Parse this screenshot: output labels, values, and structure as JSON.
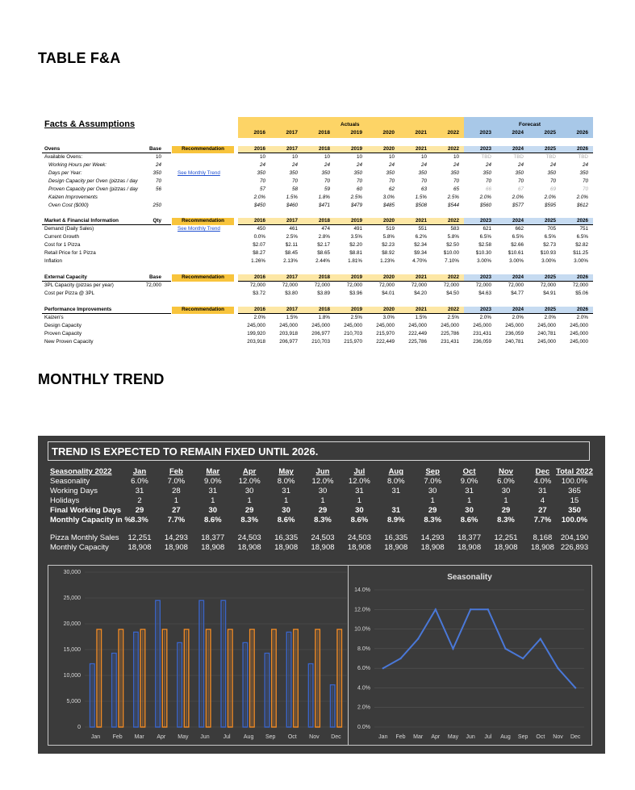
{
  "headings": {
    "table": "TABLE F&A",
    "trend": "MONTHLY TREND"
  },
  "fa": {
    "title": "Facts & Assumptions",
    "actuals_label": "Actuals",
    "forecast_label": "Forecast",
    "years": [
      "2016",
      "2017",
      "2018",
      "2019",
      "2020",
      "2021",
      "2022",
      "2023",
      "2024",
      "2025",
      "2026"
    ],
    "recommendation_label": "Recommendation",
    "sections": [
      {
        "name": "Ovens",
        "base_label": "Base",
        "rows": [
          {
            "label": "Available Ovens:",
            "indent": false,
            "base": "10",
            "link": "",
            "values": [
              "10",
              "10",
              "10",
              "10",
              "10",
              "10",
              "10",
              "TBD",
              "TBD",
              "TBD",
              "TBD"
            ]
          },
          {
            "label": "Working Hours per Week:",
            "indent": true,
            "base": "24",
            "link": "",
            "values": [
              "24",
              "24",
              "24",
              "24",
              "24",
              "24",
              "24",
              "24",
              "24",
              "24",
              "24"
            ]
          },
          {
            "label": "Days per Year:",
            "indent": true,
            "base": "350",
            "link": "See Monthly Trend",
            "values": [
              "350",
              "350",
              "350",
              "350",
              "350",
              "350",
              "350",
              "350",
              "350",
              "350",
              "350"
            ]
          },
          {
            "label": "Design Capacity per Oven (pizzas / day",
            "indent": true,
            "base": "70",
            "link": "",
            "values": [
              "70",
              "70",
              "70",
              "70",
              "70",
              "70",
              "70",
              "70",
              "70",
              "70",
              "70"
            ]
          },
          {
            "label": "Proven Capacity per Oven (pizzas / day",
            "indent": true,
            "base": "56",
            "link": "",
            "values": [
              "57",
              "58",
              "59",
              "60",
              "62",
              "63",
              "65",
              "66",
              "67",
              "69",
              "70"
            ]
          },
          {
            "label": "Kaizen Improvements",
            "indent": true,
            "base": "",
            "link": "",
            "values": [
              "2.0%",
              "1.5%",
              "1.8%",
              "2.5%",
              "3.0%",
              "1.5%",
              "2.5%",
              "2.0%",
              "2.0%",
              "2.0%",
              "2.0%"
            ]
          },
          {
            "label": "Oven Cost ($000)",
            "indent": true,
            "base": "250",
            "link": "",
            "values": [
              "$450",
              "$460",
              "$471",
              "$479",
              "$485",
              "$508",
              "$544",
              "$560",
              "$577",
              "$595",
              "$612"
            ]
          }
        ]
      },
      {
        "name": "Market & Financial Information",
        "base_label": "Qty",
        "rows": [
          {
            "label": "Demand (Daily Sales)",
            "indent": false,
            "base": "",
            "link": "See Monthly Trend",
            "values": [
              "450",
              "461",
              "474",
              "491",
              "519",
              "551",
              "583",
              "621",
              "662",
              "705",
              "751"
            ]
          },
          {
            "label": "Current Growth",
            "indent": false,
            "base": "",
            "link": "",
            "values": [
              "0.0%",
              "2.5%",
              "2.8%",
              "3.5%",
              "5.8%",
              "6.2%",
              "5.8%",
              "6.5%",
              "6.5%",
              "6.5%",
              "6.5%"
            ]
          },
          {
            "label": "Cost for 1 Pizza",
            "indent": false,
            "base": "",
            "link": "",
            "values": [
              "$2.07",
              "$2.11",
              "$2.17",
              "$2.20",
              "$2.23",
              "$2.34",
              "$2.50",
              "$2.58",
              "$2.66",
              "$2.73",
              "$2.82"
            ]
          },
          {
            "label": "Retail Price for 1 Pizza",
            "indent": false,
            "base": "",
            "link": "",
            "values": [
              "$8.27",
              "$8.45",
              "$8.65",
              "$8.81",
              "$8.92",
              "$9.34",
              "$10.00",
              "$10.30",
              "$10.61",
              "$10.93",
              "$11.25"
            ]
          },
          {
            "label": "Inflation",
            "indent": false,
            "base": "",
            "link": "",
            "values": [
              "1.26%",
              "2.13%",
              "2.44%",
              "1.81%",
              "1.23%",
              "4.70%",
              "7.10%",
              "3.00%",
              "3.00%",
              "3.00%",
              "3.00%"
            ]
          }
        ]
      },
      {
        "name": "External Capacity",
        "base_label": "Base",
        "rows": [
          {
            "label": "3PL Capacity (pizzas per year)",
            "indent": false,
            "base": "72,000",
            "link": "",
            "values": [
              "72,000",
              "72,000",
              "72,000",
              "72,000",
              "72,000",
              "72,000",
              "72,000",
              "72,000",
              "72,000",
              "72,000",
              "72,000"
            ]
          },
          {
            "label": "Cost per Pizza @ 3PL",
            "indent": false,
            "base": "",
            "link": "",
            "values": [
              "$3.72",
              "$3.80",
              "$3.89",
              "$3.96",
              "$4.01",
              "$4.20",
              "$4.50",
              "$4.63",
              "$4.77",
              "$4.91",
              "$5.06"
            ]
          }
        ]
      },
      {
        "name": "Performance Improvements",
        "base_label": "",
        "rows": [
          {
            "label": "Kaizen's",
            "indent": false,
            "base": "",
            "link": "",
            "values": [
              "2.0%",
              "1.5%",
              "1.8%",
              "2.5%",
              "3.0%",
              "1.5%",
              "2.5%",
              "2.0%",
              "2.0%",
              "2.0%",
              "2.0%"
            ]
          },
          {
            "label": "Design Capacity",
            "indent": false,
            "base": "",
            "link": "",
            "values": [
              "245,000",
              "245,000",
              "245,000",
              "245,000",
              "245,000",
              "245,000",
              "245,000",
              "245,000",
              "245,000",
              "245,000",
              "245,000"
            ]
          },
          {
            "label": "Proven Capacity",
            "indent": false,
            "base": "",
            "link": "",
            "values": [
              "199,920",
              "203,918",
              "206,977",
              "210,703",
              "215,970",
              "222,449",
              "225,786",
              "231,431",
              "236,059",
              "240,781",
              "245,000"
            ]
          },
          {
            "label": "New Proven Capacity",
            "indent": false,
            "base": "",
            "link": "",
            "values": [
              "203,918",
              "206,977",
              "210,703",
              "215,970",
              "222,449",
              "225,786",
              "231,431",
              "236,059",
              "240,781",
              "245,000",
              "245,000"
            ]
          }
        ]
      }
    ]
  },
  "trend": {
    "title": "TREND IS EXPECTED TO REMAIN FIXED UNTIL 2026.",
    "header_label": "Seasonality 2022",
    "months": [
      "Jan",
      "Feb",
      "Mar",
      "Apr",
      "May",
      "Jun",
      "Jul",
      "Aug",
      "Sep",
      "Oct",
      "Nov",
      "Dec"
    ],
    "total_label": "Total 2022",
    "rows": [
      {
        "label": "Seasonality",
        "bold": false,
        "values": [
          "6.0%",
          "7.0%",
          "9.0%",
          "12.0%",
          "8.0%",
          "12.0%",
          "12.0%",
          "8.0%",
          "7.0%",
          "9.0%",
          "6.0%",
          "4.0%"
        ],
        "total": "100.0%"
      },
      {
        "label": "Working Days",
        "bold": false,
        "values": [
          "31",
          "28",
          "31",
          "30",
          "31",
          "30",
          "31",
          "31",
          "30",
          "31",
          "30",
          "31"
        ],
        "total": "365"
      },
      {
        "label": "Holidays",
        "bold": false,
        "values": [
          "2",
          "1",
          "1",
          "1",
          "1",
          "1",
          "1",
          "",
          "1",
          "1",
          "1",
          "4"
        ],
        "total": "15"
      },
      {
        "label": "Final Working Days",
        "bold": true,
        "values": [
          "29",
          "27",
          "30",
          "29",
          "30",
          "29",
          "30",
          "31",
          "29",
          "30",
          "29",
          "27"
        ],
        "total": "350"
      },
      {
        "label": "Monthly Capacity in %",
        "bold": true,
        "values": [
          "8.3%",
          "7.7%",
          "8.6%",
          "8.3%",
          "8.6%",
          "8.3%",
          "8.6%",
          "8.9%",
          "8.3%",
          "8.6%",
          "8.3%",
          "7.7%"
        ],
        "total": "100.0%"
      },
      {
        "label": "Pizza Monthly Sales",
        "bold": false,
        "values": [
          "12,251",
          "14,293",
          "18,377",
          "24,503",
          "16,335",
          "24,503",
          "24,503",
          "16,335",
          "14,293",
          "18,377",
          "12,251",
          "8,168"
        ],
        "total": "204,190"
      },
      {
        "label": "Monthly Capacity",
        "bold": false,
        "values": [
          "18,908",
          "18,908",
          "18,908",
          "18,908",
          "18,908",
          "18,908",
          "18,908",
          "18,908",
          "18,908",
          "18,908",
          "18,908",
          "18,908"
        ],
        "total": "226,893"
      }
    ]
  },
  "chart_data": [
    {
      "type": "bar",
      "title": "",
      "categories": [
        "Jan",
        "Feb",
        "Mar",
        "Apr",
        "May",
        "Jun",
        "Jul",
        "Aug",
        "Sep",
        "Oct",
        "Nov",
        "Dec"
      ],
      "series": [
        {
          "name": "Pizza Monthly Sales",
          "color": "#3a64c8",
          "values": [
            12251,
            14293,
            18377,
            24503,
            16335,
            24503,
            24503,
            16335,
            14293,
            18377,
            12251,
            8168
          ]
        },
        {
          "name": "Monthly Capacity",
          "color": "#f08a24",
          "values": [
            18908,
            18908,
            18908,
            18908,
            18908,
            18908,
            18908,
            18908,
            18908,
            18908,
            18908,
            18908
          ]
        }
      ],
      "yticks": [
        "0",
        "5,000",
        "10,000",
        "15,000",
        "20,000",
        "25,000",
        "30,000"
      ],
      "ylim": [
        0,
        30000
      ],
      "xlabel": "",
      "ylabel": ""
    },
    {
      "type": "line",
      "title": "Seasonality",
      "categories": [
        "Jan",
        "Feb",
        "Mar",
        "Apr",
        "May",
        "Jun",
        "Jul",
        "Aug",
        "Sep",
        "Oct",
        "Nov",
        "Dec"
      ],
      "series": [
        {
          "name": "Seasonality",
          "color": "#4a78d8",
          "values": [
            6.0,
            7.0,
            9.0,
            12.0,
            8.0,
            12.0,
            12.0,
            8.0,
            7.0,
            9.0,
            6.0,
            4.0
          ]
        }
      ],
      "yticks": [
        "0.0%",
        "2.0%",
        "4.0%",
        "6.0%",
        "8.0%",
        "10.0%",
        "12.0%",
        "14.0%"
      ],
      "ylim": [
        0,
        14
      ],
      "xlabel": "",
      "ylabel": ""
    }
  ]
}
